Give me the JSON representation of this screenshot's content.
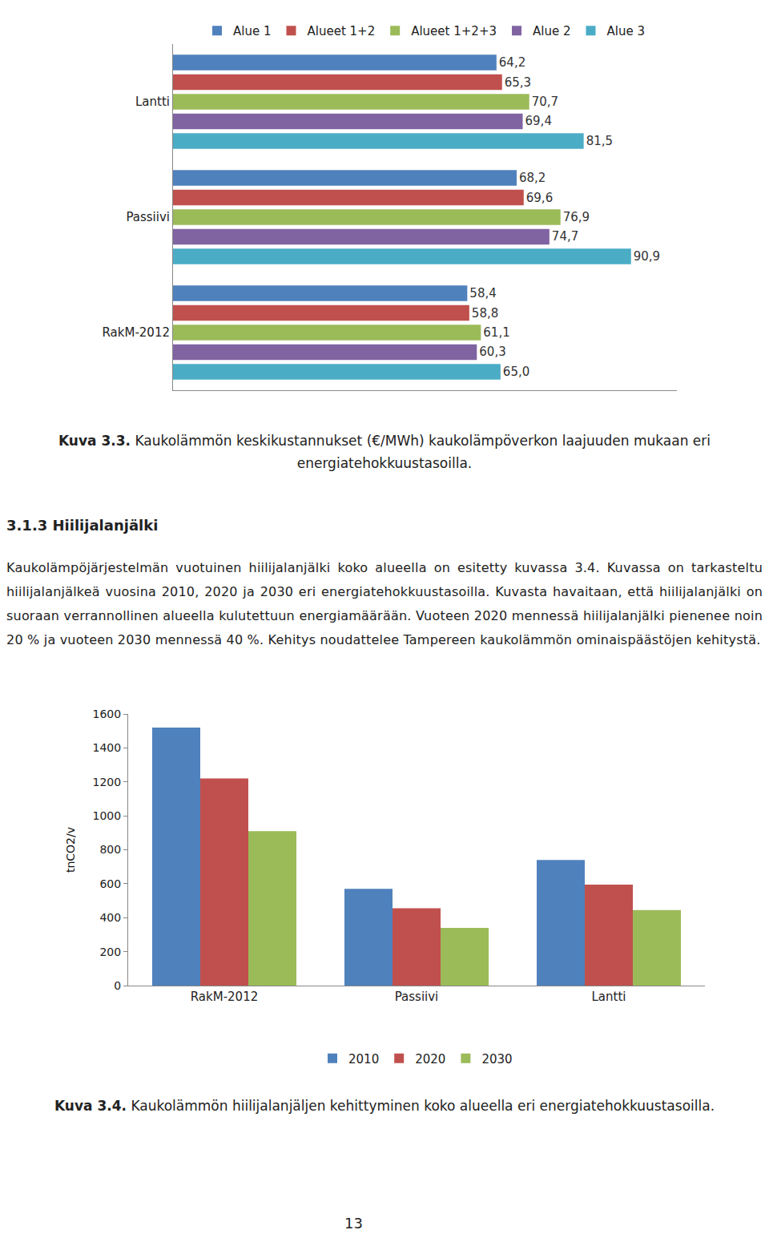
{
  "chart_data": [
    {
      "type": "bar",
      "orientation": "horizontal",
      "categories": [
        "Lantti",
        "Passiivi",
        "RakM-2012"
      ],
      "series": [
        {
          "name": "Alue 1",
          "color": "#4f81bd",
          "values": [
            64.2,
            68.2,
            58.4
          ],
          "value_labels": [
            "64,2",
            "68,2",
            "58,4"
          ]
        },
        {
          "name": "Alueet 1+2",
          "color": "#c0504d",
          "values": [
            65.3,
            69.6,
            58.8
          ],
          "value_labels": [
            "65,3",
            "69,6",
            "58,8"
          ]
        },
        {
          "name": "Alueet 1+2+3",
          "color": "#9bbb59",
          "values": [
            70.7,
            76.9,
            61.1
          ],
          "value_labels": [
            "70,7",
            "76,9",
            "61,1"
          ]
        },
        {
          "name": "Alue 2",
          "color": "#8064a2",
          "values": [
            69.4,
            74.7,
            60.3
          ],
          "value_labels": [
            "69,4",
            "74,7",
            "60,3"
          ]
        },
        {
          "name": "Alue 3",
          "color": "#4bacc6",
          "values": [
            81.5,
            90.9,
            65.0
          ],
          "value_labels": [
            "81,5",
            "90,9",
            "65,0"
          ]
        }
      ],
      "xlim": [
        0,
        100
      ],
      "data_labels": true,
      "tick_labels": "y",
      "legend": "top",
      "grid": false
    },
    {
      "type": "bar",
      "categories": [
        "RakM-2012",
        "Passiivi",
        "Lantti"
      ],
      "series": [
        {
          "name": "2010",
          "color": "#4f81bd",
          "values": [
            1520,
            570,
            740
          ]
        },
        {
          "name": "2020",
          "color": "#c0504d",
          "values": [
            1220,
            455,
            595
          ]
        },
        {
          "name": "2030",
          "color": "#9bbb59",
          "values": [
            910,
            340,
            445
          ]
        }
      ],
      "y_label": "tnCO2/v",
      "ylim": [
        0,
        1600
      ],
      "yticks": [
        0,
        200,
        400,
        600,
        800,
        1000,
        1200,
        1400,
        1600
      ],
      "legend": "bottom",
      "grid": false
    }
  ],
  "document": {
    "caption_3_3": {
      "label": "Kuva 3.3.",
      "text": "Kaukolämmön keskikustannukset (€/MWh) kaukolämpöverkon laajuuden mukaan eri energiatehokkuustasoilla."
    },
    "heading": "3.1.3 Hiilijalanjälki",
    "paragraph": "Kaukolämpöjärjestelmän vuotuinen hiilijalanjälki koko alueella on esitetty kuvassa 3.4. Kuvassa on tarkasteltu hiilijalanjälkeä vuosina 2010, 2020 ja 2030 eri energiatehokkuustasoilla. Kuvasta havaitaan, että hiilijalanjälki on suoraan verrannollinen alueella kulutettuun energiamäärään. Vuoteen 2020 mennessä hiilijalanjälki pienenee noin 20 % ja vuoteen 2030 mennessä 40 %. Kehitys noudattelee Tampereen kaukolämmön ominaispäästöjen kehitystä.",
    "caption_3_4": {
      "label": "Kuva 3.4.",
      "text": "Kaukolämmön hiilijalanjäljen kehittyminen koko alueella eri energiatehokkuustasoilla."
    },
    "page_number": "13"
  }
}
